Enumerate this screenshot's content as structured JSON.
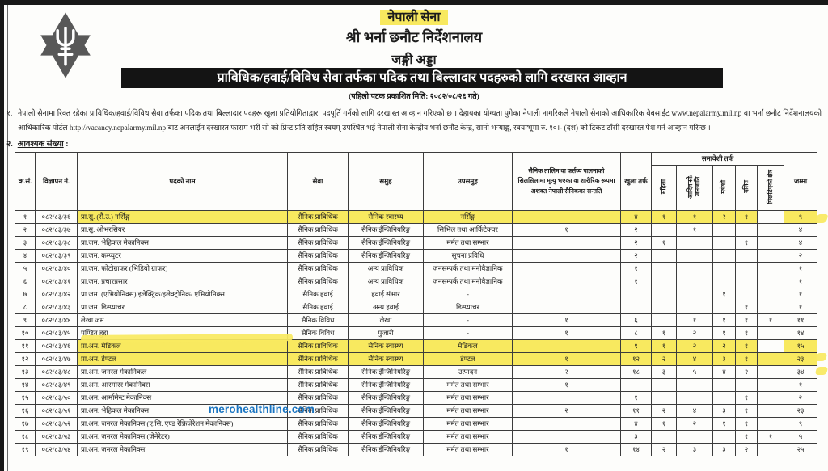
{
  "header": {
    "org_line1": "नेपाली सेना",
    "org_line2": "श्री भर्ना छनौट निर्देशनालय",
    "org_line3": "जङ्गी अड्डा",
    "banner": "प्राविधिक/हवाई/विविध सेवा तर्फका पदिक तथा बिल्लादार पदहरुको लागि दरखास्त आव्हान",
    "published_line": "(पहिलो पटक प्रकाशित मिति: २०८२/०८/२६ गते)"
  },
  "intro": {
    "number": "१.",
    "text": "नेपाली सेनामा रिक्त रहेका प्राविधिक/हवाई/विविध सेवा तर्फका पदिक तथा बिल्लादार पदहरू खुला प्रतियोगिताद्वारा पदपूर्ति गर्नको लागि दरखास्त आव्हान गरिएको छ । देहायका योग्यता पुगेका नेपाली नागरिकले नेपाली सेनाको आधिकारिक वेबसाईट www.nepalarmy.mil.np वा भर्ना छनौट निर्देशनालयको आधिकारिक पोर्टल http://vacancy.nepalarmy.mil.np बाट अनलाईन दरखास्त फाराम भरी सो को प्रिन्ट प्रति सहित स्वयम् उपस्थित भई नेपाली सेना केन्द्रीय भर्ना छनौट केन्द्र, सानो भऱ्याङ्ग, स्वयम्भूमा रु. १०।- (दश) को टिकट टाँसी दरखास्त पेश गर्न आव्हान गरिन्छ ।"
  },
  "section2": {
    "number": "२.",
    "label": "आवश्यक संख्या",
    "colon": ":"
  },
  "watermark": {
    "text": "merohealthline.com",
    "color": "#1a75c2"
  },
  "colors": {
    "highlight": "#f8e95f",
    "banner_bg": "#141414"
  },
  "table": {
    "headers": {
      "sn": "क.सं.",
      "adv": "विज्ञापन नं.",
      "post": "पदको नाम",
      "service": "सेवा",
      "group": "समुह",
      "subgroup": "उपसमुह",
      "santati": "सैनिक तालिम वा कर्तव्य पालनाको सिलसिलामा मृत्यु भएका वा शारीरिक रूपमा अशक्त नेपाली सैनिकका सन्तति",
      "open": "खुला तर्फ",
      "inclusive": "समावेशी तर्फ",
      "mahila": "महिला",
      "adivasi": "आदिवासी/ जनजाति",
      "madhesi": "मधेशी",
      "dalit": "दलित",
      "pichhada": "पिछडिएको क्षेत्र",
      "total": "जम्मा"
    },
    "rows": [
      {
        "sn": "१",
        "adv": "०८२/८३/३६",
        "post": "प्रा.सु. (सै.उ.) नर्सिङ्ग",
        "service": "सैनिक प्राविधिक",
        "group": "सैनिक स्वास्थ्य",
        "subgroup": "नर्सिङ्ग",
        "santati": "",
        "open": "४",
        "mahila": "१",
        "adivasi": "१",
        "madhesi": "२",
        "dalit": "१",
        "pichhada": "",
        "total": "९",
        "hl": "a"
      },
      {
        "sn": "२",
        "adv": "०८२/८३/३७",
        "post": "प्रा.सु. ओभरसियर",
        "service": "सैनिक प्राविधिक",
        "group": "सैनिक ईन्जिनियरिङ्ग",
        "subgroup": "सिभिल तथा आर्किटेक्चर",
        "santati": "१",
        "open": "२",
        "mahila": "",
        "adivasi": "१",
        "madhesi": "",
        "dalit": "",
        "pichhada": "",
        "total": "४"
      },
      {
        "sn": "३",
        "adv": "०८२/८३/३८",
        "post": "प्रा.जम. भेहिकल मेकानिक्स",
        "service": "सैनिक प्राविधिक",
        "group": "सैनिक ईन्जिनियरिङ्ग",
        "subgroup": "मर्मत तथा सम्भार",
        "santati": "",
        "open": "२",
        "mahila": "१",
        "adivasi": "",
        "madhesi": "",
        "dalit": "१",
        "pichhada": "",
        "total": "४"
      },
      {
        "sn": "४",
        "adv": "०८२/८३/३९",
        "post": "प्रा.जम. कम्प्युटर",
        "service": "सैनिक प्राविधिक",
        "group": "सैनिक ईन्जिनियरिङ्ग",
        "subgroup": "सूचना प्रविधि",
        "santati": "",
        "open": "२",
        "mahila": "",
        "adivasi": "",
        "madhesi": "",
        "dalit": "",
        "pichhada": "",
        "total": "२"
      },
      {
        "sn": "५",
        "adv": "०८२/८३/४०",
        "post": "प्रा.जम. फोटोग्राफर (भिडियो ग्राफर)",
        "service": "सैनिक प्राविधिक",
        "group": "अन्य प्राविधिक",
        "subgroup": "जनसम्पर्क तथा मनोवैज्ञानिक",
        "santati": "",
        "open": "१",
        "mahila": "",
        "adivasi": "",
        "madhesi": "",
        "dalit": "",
        "pichhada": "",
        "total": "१"
      },
      {
        "sn": "६",
        "adv": "०८२/८३/४१",
        "post": "प्रा.जम. प्रचारप्रसार",
        "service": "सैनिक प्राविधिक",
        "group": "अन्य प्राविधिक",
        "subgroup": "जनसम्पर्क तथा मनोवैज्ञानिक",
        "santati": "",
        "open": "१",
        "mahila": "",
        "adivasi": "",
        "madhesi": "",
        "dalit": "",
        "pichhada": "",
        "total": "१"
      },
      {
        "sn": "७",
        "adv": "०८२/८३/४२",
        "post": "प्रा.जम. (एभियोनिक्स) इलेक्ट्रिक/इलेक्ट्रोनिक/ एभियोनिक्स",
        "service": "सैनिक हवाई",
        "group": "हवाई संभार",
        "subgroup": "-",
        "santati": "",
        "open": "",
        "mahila": "",
        "adivasi": "",
        "madhesi": "१",
        "dalit": "",
        "pichhada": "",
        "total": "१"
      },
      {
        "sn": "८",
        "adv": "०८२/८३/४३",
        "post": "प्रा.जम. डिस्प्याचर",
        "service": "सैनिक हवाई",
        "group": "अन्य हवाई",
        "subgroup": "डिस्प्याचर",
        "santati": "",
        "open": "",
        "mahila": "",
        "adivasi": "",
        "madhesi": "",
        "dalit": "१",
        "pichhada": "",
        "total": "१"
      },
      {
        "sn": "९",
        "adv": "०८२/८३/४४",
        "post": "लेखा जम.",
        "service": "सैनिक विविध",
        "group": "लेखा",
        "subgroup": "-",
        "santati": "१",
        "open": "६",
        "mahila": "",
        "adivasi": "१",
        "madhesi": "१",
        "dalit": "१",
        "pichhada": "१",
        "total": "११"
      },
      {
        "sn": "१०",
        "adv": "०८२/८३/४५",
        "post": "पण्डित हुद्दा",
        "service": "सैनिक विविध",
        "group": "पुजारी",
        "subgroup": "-",
        "santati": "१",
        "open": "८",
        "mahila": "१",
        "adivasi": "२",
        "madhesi": "१",
        "dalit": "१",
        "pichhada": "",
        "total": "१४"
      },
      {
        "sn": "११",
        "adv": "०८२/८३/४६",
        "post": "प्रा.अम. मेडिकल",
        "service": "सैनिक प्राविधिक",
        "group": "सैनिक स्वास्थ्य",
        "subgroup": "मेडिकल",
        "santati": "",
        "open": "९",
        "mahila": "१",
        "adivasi": "२",
        "madhesi": "२",
        "dalit": "१",
        "pichhada": "",
        "total": "१५",
        "hl": "a"
      },
      {
        "sn": "१२",
        "adv": "०८२/८३/४७",
        "post": "प्रा.अम. डेण्टल",
        "service": "सैनिक प्राविधिक",
        "group": "सैनिक स्वास्थ्य",
        "subgroup": "डेण्टल",
        "santati": "१",
        "open": "१२",
        "mahila": "२",
        "adivasi": "४",
        "madhesi": "३",
        "dalit": "१",
        "pichhada": "",
        "total": "२३",
        "hl": "b"
      },
      {
        "sn": "१३",
        "adv": "०८२/८३/४८",
        "post": "प्रा.अम. जनरल मेकानिकल",
        "service": "सैनिक प्राविधिक",
        "group": "सैनिक ईन्जिनियरिङ्ग",
        "subgroup": "उत्पादन",
        "santati": "२",
        "open": "१८",
        "mahila": "३",
        "adivasi": "५",
        "madhesi": "४",
        "dalit": "२",
        "pichhada": "",
        "total": "३४"
      },
      {
        "sn": "१४",
        "adv": "०८२/८३/४९",
        "post": "प्रा.अम. आरमोरर मेकानिक्स",
        "service": "सैनिक प्राविधिक",
        "group": "सैनिक ईन्जिनियरिङ्ग",
        "subgroup": "मर्मत तथा सम्भार",
        "santati": "१",
        "open": "",
        "mahila": "",
        "adivasi": "",
        "madhesi": "",
        "dalit": "",
        "pichhada": "",
        "total": "१"
      },
      {
        "sn": "१५",
        "adv": "०८२/८३/५०",
        "post": "प्रा.अम. आर्मामेन्ट मेकानिक्स",
        "service": "सैनिक प्राविधिक",
        "group": "सैनिक ईन्जिनियरिङ्ग",
        "subgroup": "मर्मत तथा सम्भार",
        "santati": "",
        "open": "१",
        "mahila": "",
        "adivasi": "",
        "madhesi": "",
        "dalit": "१",
        "pichhada": "",
        "total": "२"
      },
      {
        "sn": "१६",
        "adv": "०८२/८३/५१",
        "post": "प्रा.अम. भेहिकल मेकानिक्स",
        "service": "सैनिक प्राविधिक",
        "group": "सैनिक ईन्जिनियरिङ्ग",
        "subgroup": "मर्मत तथा सम्भार",
        "santati": "२",
        "open": "११",
        "mahila": "२",
        "adivasi": "४",
        "madhesi": "३",
        "dalit": "१",
        "pichhada": "",
        "total": "२३"
      },
      {
        "sn": "१७",
        "adv": "०८२/८३/५२",
        "post": "प्रा.अम. जनरल मेकानिक्स (ए.सि. एण्ड रेफ्रिजेरेशन मेकानिक्स)",
        "service": "सैनिक प्राविधिक",
        "group": "सैनिक ईन्जिनियरिङ्ग",
        "subgroup": "मर्मत तथा सम्भार",
        "santati": "",
        "open": "४",
        "mahila": "१",
        "adivasi": "२",
        "madhesi": "१",
        "dalit": "१",
        "pichhada": "",
        "total": "९"
      },
      {
        "sn": "१८",
        "adv": "०८२/८३/५३",
        "post": "प्रा.अम. जनरल मेकानिक्स (जेनेरेटर)",
        "service": "सैनिक प्राविधिक",
        "group": "सैनिक ईन्जिनियरिङ्ग",
        "subgroup": "मर्मत तथा सम्भार",
        "santati": "",
        "open": "३",
        "mahila": "",
        "adivasi": "",
        "madhesi": "",
        "dalit": "१",
        "pichhada": "१",
        "total": "५"
      },
      {
        "sn": "१९",
        "adv": "०८२/८३/५४",
        "post": "प्रा.अम. जनरल मेकानिक्स",
        "service": "सैनिक प्राविधिक",
        "group": "सैनिक ईन्जिनियरिङ्ग",
        "subgroup": "मर्मत तथा सम्भार",
        "santati": "१",
        "open": "१४",
        "mahila": "२",
        "adivasi": "३",
        "madhesi": "३",
        "dalit": "२",
        "pichhada": "",
        "total": "२५"
      }
    ]
  }
}
